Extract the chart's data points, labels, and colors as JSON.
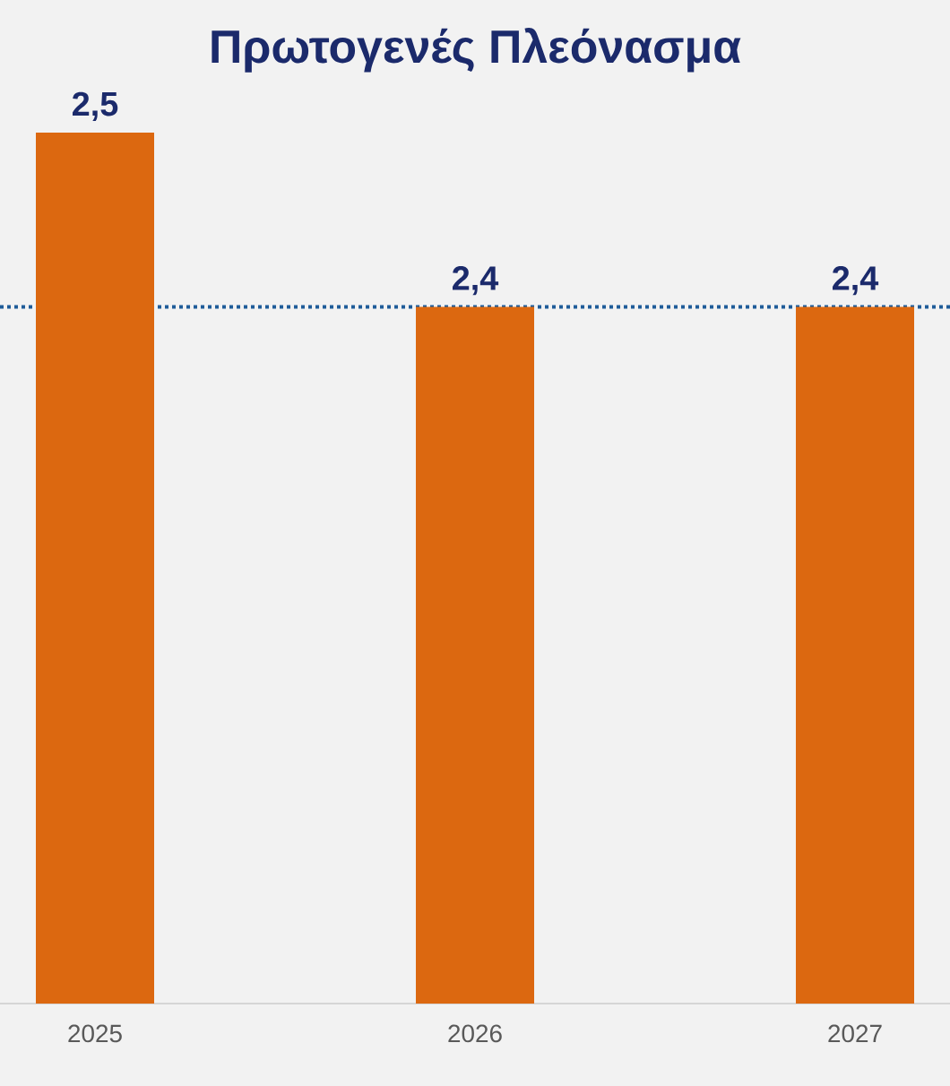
{
  "chart_data": {
    "type": "bar",
    "title": "Πρωτογενές Πλεόνασμα",
    "categories": [
      "2025",
      "2026",
      "2027"
    ],
    "values": [
      2.5,
      2.4,
      2.4
    ],
    "value_labels": [
      "2,5",
      "2,4",
      "2,4"
    ],
    "color": "#dc6810",
    "ylim": [
      2.0,
      2.5
    ],
    "tick_labels": "x",
    "ref_lines": [
      {
        "axis": "y",
        "value": 2.4,
        "color": "#1f5c99",
        "line_style": "dotted"
      }
    ]
  }
}
